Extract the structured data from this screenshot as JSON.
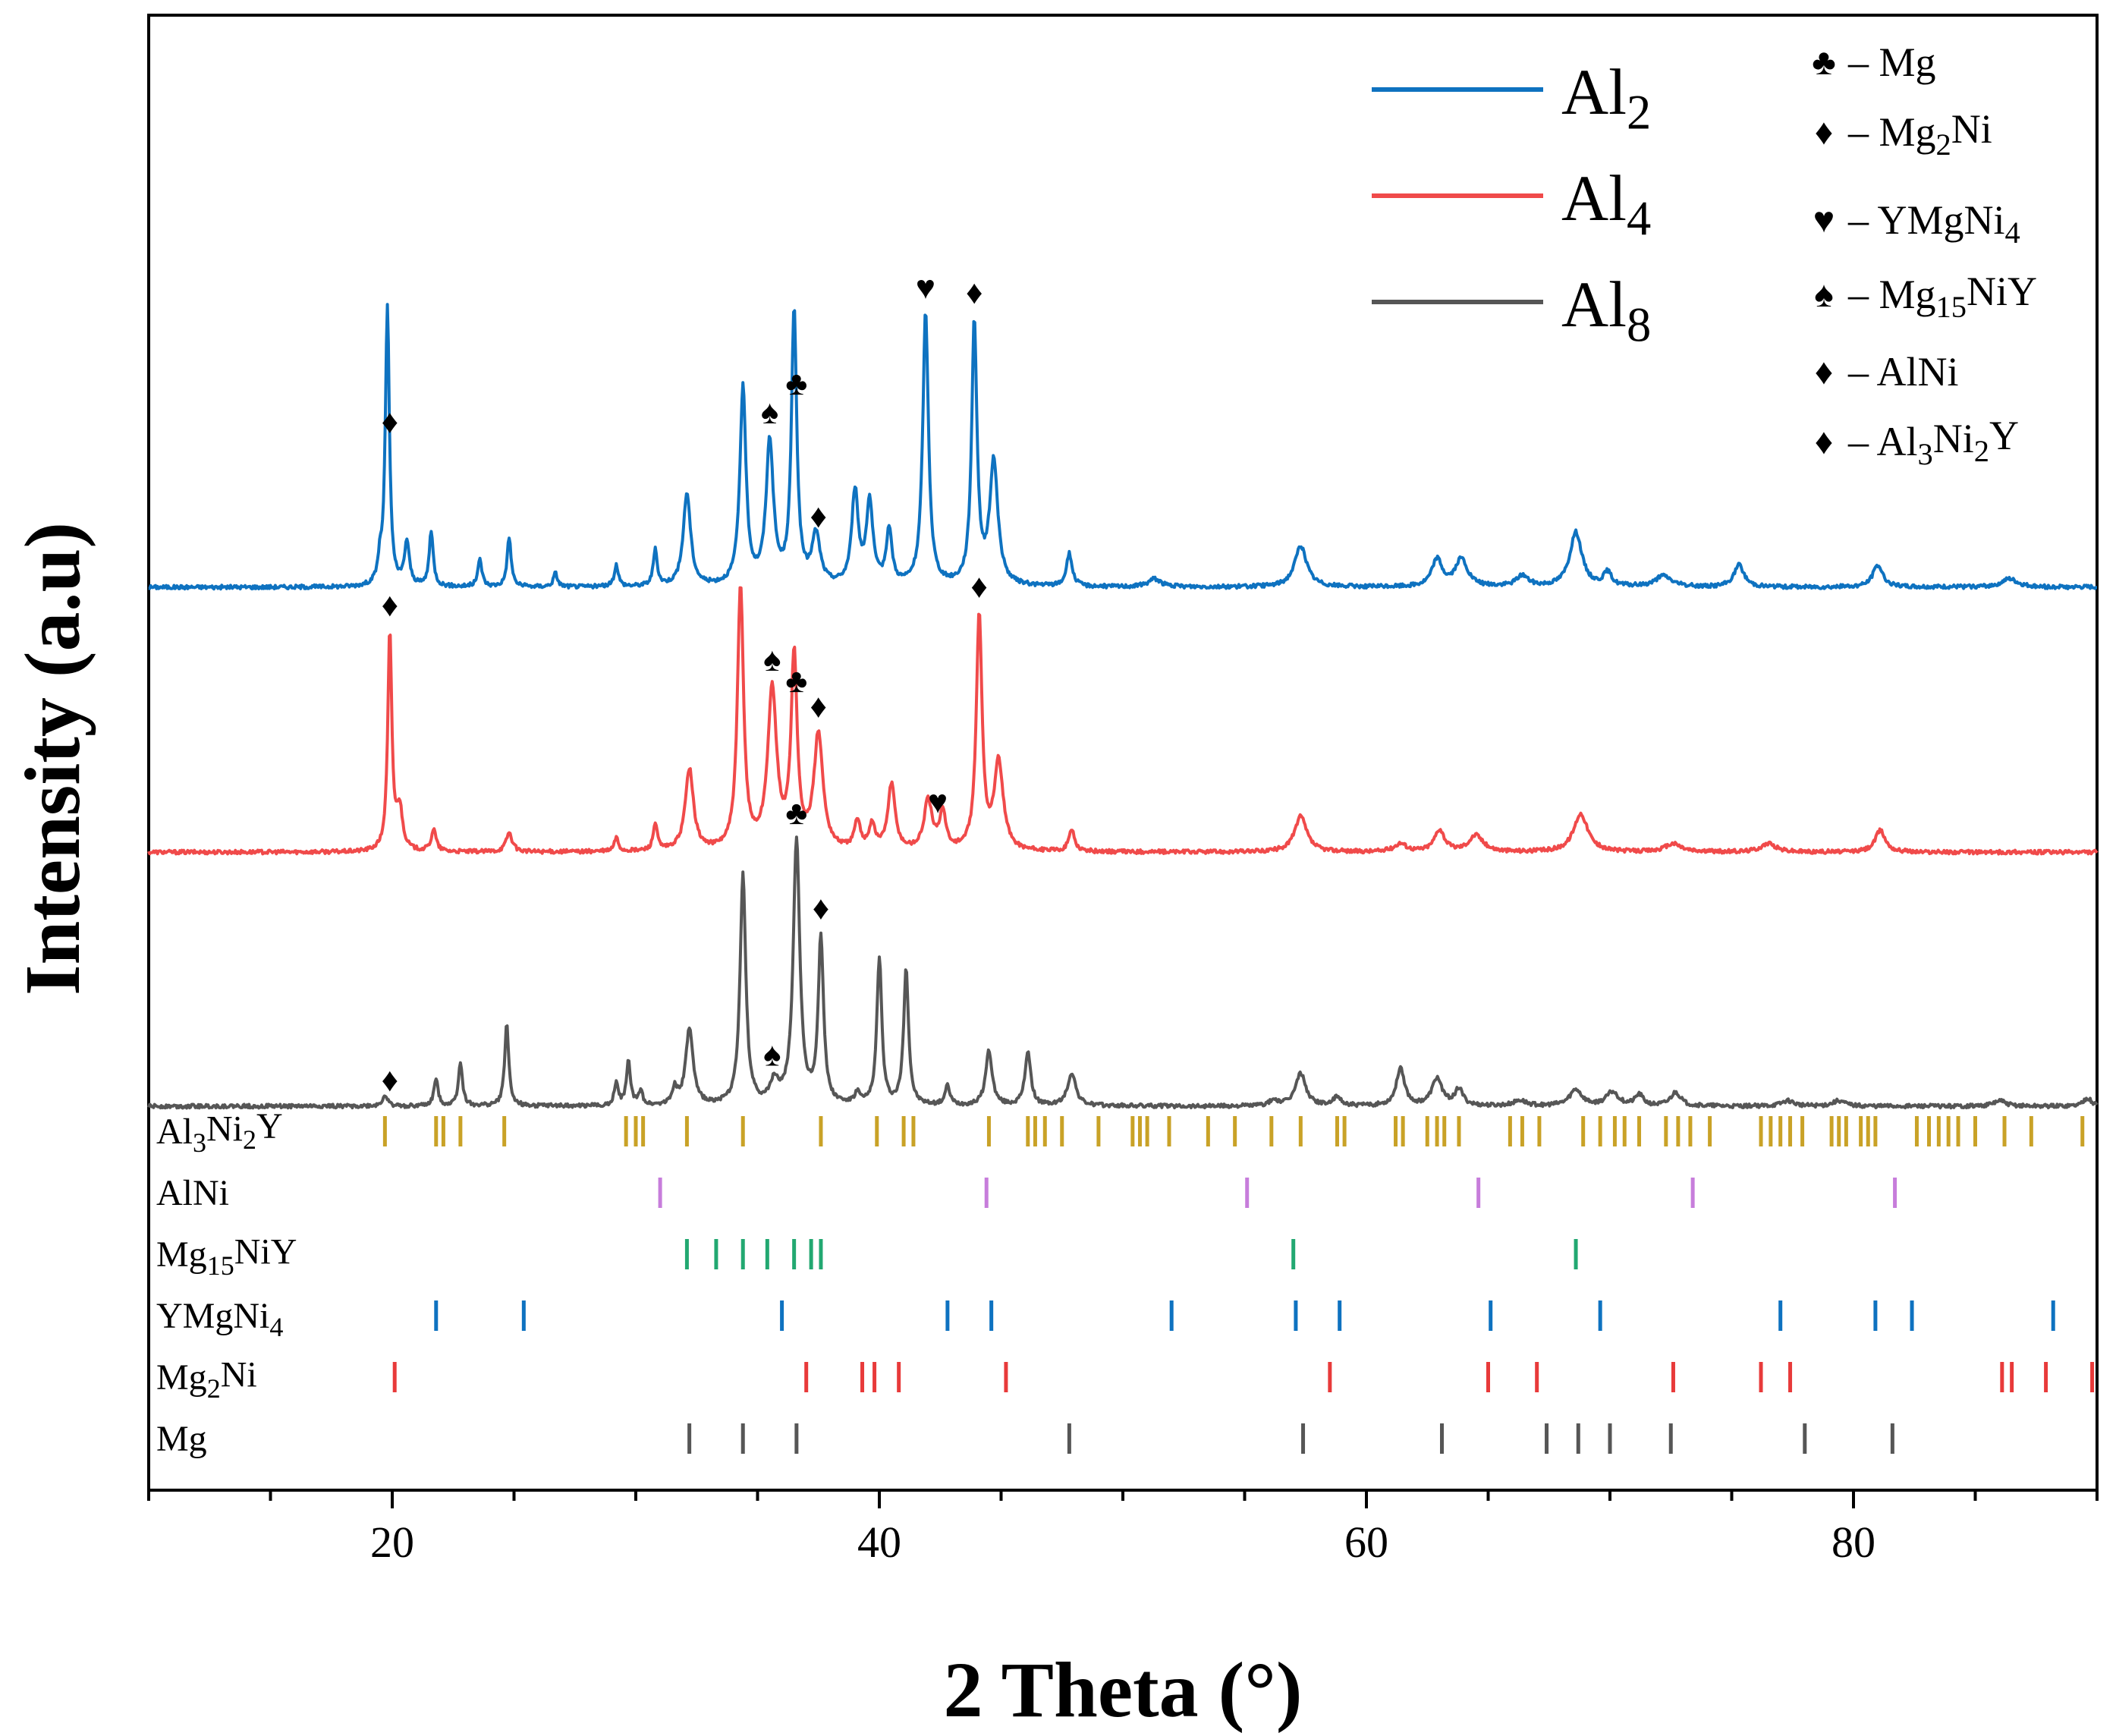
{
  "chart_data": {
    "type": "line",
    "title": "",
    "xlabel": "2 Theta (°)",
    "ylabel": "Intensity (a.u)",
    "xlim": [
      10,
      90
    ],
    "xticks": [
      20,
      40,
      60,
      80
    ],
    "xtick_labels": [
      "20",
      "40",
      "60",
      "80"
    ],
    "series": [
      {
        "name": "Al2",
        "label_base": "Al",
        "label_sub": "2",
        "color": "#0e72c0",
        "baseline": 1.9,
        "peaks": [
          [
            19.5,
            0.08,
            0.1
          ],
          [
            19.8,
            1.02,
            0.1
          ],
          [
            20.6,
            0.16,
            0.12
          ],
          [
            21.6,
            0.2,
            0.1
          ],
          [
            23.6,
            0.1,
            0.1
          ],
          [
            24.8,
            0.18,
            0.1
          ],
          [
            26.7,
            0.05,
            0.1
          ],
          [
            29.2,
            0.08,
            0.1
          ],
          [
            30.8,
            0.13,
            0.1
          ],
          [
            32.1,
            0.34,
            0.18
          ],
          [
            34.4,
            0.72,
            0.15
          ],
          [
            35.5,
            0.52,
            0.18
          ],
          [
            36.5,
            1.0,
            0.13
          ],
          [
            37.4,
            0.18,
            0.2
          ],
          [
            39.0,
            0.34,
            0.16
          ],
          [
            39.6,
            0.3,
            0.16
          ],
          [
            40.4,
            0.2,
            0.14
          ],
          [
            41.9,
            1.0,
            0.14
          ],
          [
            43.9,
            0.96,
            0.13
          ],
          [
            44.7,
            0.45,
            0.2
          ],
          [
            47.8,
            0.12,
            0.14
          ],
          [
            51.3,
            0.03,
            0.3
          ],
          [
            57.3,
            0.15,
            0.3
          ],
          [
            62.9,
            0.1,
            0.25
          ],
          [
            63.9,
            0.1,
            0.3
          ],
          [
            66.4,
            0.04,
            0.3
          ],
          [
            68.6,
            0.2,
            0.3
          ],
          [
            69.9,
            0.05,
            0.2
          ],
          [
            72.2,
            0.04,
            0.4
          ],
          [
            75.3,
            0.08,
            0.25
          ],
          [
            81.0,
            0.08,
            0.25
          ],
          [
            86.4,
            0.03,
            0.4
          ]
        ]
      },
      {
        "name": "Al4",
        "label_base": "Al",
        "label_sub": "4",
        "color": "#f04a4a",
        "baseline": 0.93,
        "peaks": [
          [
            19.9,
            0.8,
            0.1
          ],
          [
            20.3,
            0.15,
            0.15
          ],
          [
            21.7,
            0.08,
            0.12
          ],
          [
            24.8,
            0.07,
            0.15
          ],
          [
            29.2,
            0.05,
            0.1
          ],
          [
            30.8,
            0.1,
            0.1
          ],
          [
            32.2,
            0.3,
            0.2
          ],
          [
            34.3,
            0.96,
            0.15
          ],
          [
            35.6,
            0.58,
            0.22
          ],
          [
            36.5,
            0.7,
            0.15
          ],
          [
            37.5,
            0.42,
            0.22
          ],
          [
            39.1,
            0.1,
            0.15
          ],
          [
            39.7,
            0.09,
            0.15
          ],
          [
            40.5,
            0.24,
            0.18
          ],
          [
            42.0,
            0.18,
            0.2
          ],
          [
            42.6,
            0.14,
            0.15
          ],
          [
            44.1,
            0.86,
            0.14
          ],
          [
            44.9,
            0.32,
            0.22
          ],
          [
            47.9,
            0.08,
            0.14
          ],
          [
            57.3,
            0.13,
            0.3
          ],
          [
            61.4,
            0.03,
            0.3
          ],
          [
            63.0,
            0.08,
            0.25
          ],
          [
            64.5,
            0.06,
            0.35
          ],
          [
            68.8,
            0.14,
            0.35
          ],
          [
            72.6,
            0.03,
            0.4
          ],
          [
            76.5,
            0.03,
            0.4
          ],
          [
            81.1,
            0.08,
            0.25
          ]
        ]
      },
      {
        "name": "Al8",
        "label_base": "Al",
        "label_sub": "8",
        "color": "#565656",
        "baseline": 0.0,
        "peaks": [
          [
            19.7,
            0.04,
            0.12
          ],
          [
            21.8,
            0.1,
            0.1
          ],
          [
            22.8,
            0.16,
            0.1
          ],
          [
            24.7,
            0.3,
            0.1
          ],
          [
            29.2,
            0.08,
            0.1
          ],
          [
            29.7,
            0.16,
            0.1
          ],
          [
            30.2,
            0.05,
            0.1
          ],
          [
            31.6,
            0.06,
            0.12
          ],
          [
            32.2,
            0.28,
            0.18
          ],
          [
            34.4,
            0.84,
            0.14
          ],
          [
            35.7,
            0.08,
            0.2
          ],
          [
            36.6,
            0.97,
            0.16
          ],
          [
            37.6,
            0.61,
            0.13
          ],
          [
            39.1,
            0.04,
            0.12
          ],
          [
            40.0,
            0.54,
            0.12
          ],
          [
            41.1,
            0.5,
            0.12
          ],
          [
            42.8,
            0.07,
            0.12
          ],
          [
            44.5,
            0.2,
            0.16
          ],
          [
            46.1,
            0.2,
            0.14
          ],
          [
            47.9,
            0.12,
            0.2
          ],
          [
            56.2,
            0.02,
            0.2
          ],
          [
            57.3,
            0.12,
            0.25
          ],
          [
            58.8,
            0.03,
            0.2
          ],
          [
            61.4,
            0.14,
            0.2
          ],
          [
            62.9,
            0.1,
            0.25
          ],
          [
            63.8,
            0.06,
            0.2
          ],
          [
            66.3,
            0.02,
            0.3
          ],
          [
            68.6,
            0.06,
            0.3
          ],
          [
            70.1,
            0.05,
            0.3
          ],
          [
            71.2,
            0.04,
            0.2
          ],
          [
            72.7,
            0.05,
            0.25
          ],
          [
            77.3,
            0.02,
            0.3
          ],
          [
            79.4,
            0.02,
            0.3
          ],
          [
            86.0,
            0.02,
            0.3
          ],
          [
            89.6,
            0.03,
            0.2
          ]
        ]
      }
    ],
    "phase_markers": [
      {
        "series": "Al2",
        "symbol": "♦",
        "color": "#000000",
        "x": 19.9
      },
      {
        "series": "Al2",
        "symbol": "♣",
        "color": "#000000",
        "x": 36.6
      },
      {
        "series": "Al2",
        "symbol": "♠",
        "color": "#000000",
        "x": 35.5
      },
      {
        "series": "Al2",
        "symbol": "♥",
        "color": "#000000",
        "x": 41.9
      },
      {
        "series": "Al2",
        "symbol": "♦",
        "color": "#ff0000",
        "x": 43.9
      },
      {
        "series": "Al2",
        "symbol": "♦",
        "color": "#0000cc",
        "x": 37.5
      },
      {
        "series": "Al4",
        "symbol": "♦",
        "color": "#000000",
        "x": 19.9
      },
      {
        "series": "Al4",
        "symbol": "♣",
        "color": "#000000",
        "x": 36.6
      },
      {
        "series": "Al4",
        "symbol": "♠",
        "color": "#000000",
        "x": 35.6
      },
      {
        "series": "Al4",
        "symbol": "♦",
        "color": "#0000cc",
        "x": 37.5
      },
      {
        "series": "Al4",
        "symbol": "♥",
        "color": "#000000",
        "x": 42.4
      },
      {
        "series": "Al4",
        "symbol": "♦",
        "color": "#ff0000",
        "x": 44.1
      },
      {
        "series": "Al8",
        "symbol": "♦",
        "color": "#000000",
        "x": 19.9
      },
      {
        "series": "Al8",
        "symbol": "♣",
        "color": "#000000",
        "x": 36.6
      },
      {
        "series": "Al8",
        "symbol": "♠",
        "color": "#000000",
        "x": 35.6
      },
      {
        "series": "Al8",
        "symbol": "♦",
        "color": "#0000cc",
        "x": 37.6
      }
    ],
    "symbol_legend": [
      {
        "symbol": "♣",
        "color": "#000000",
        "label_base": "– Mg",
        "parts": [
          [
            "– Mg",
            ""
          ]
        ]
      },
      {
        "symbol": "♦",
        "color": "#000000",
        "label_base": "– Mg2Ni",
        "parts": [
          [
            "– Mg",
            ""
          ],
          [
            "2",
            "sub"
          ],
          [
            "Ni",
            ""
          ]
        ]
      },
      {
        "symbol": "♥",
        "color": "#000000",
        "label_base": "– YMgNi4",
        "parts": [
          [
            "– YMgNi",
            ""
          ],
          [
            "4",
            "sub"
          ]
        ]
      },
      {
        "symbol": "♠",
        "color": "#000000",
        "label_base": "– Mg15NiY",
        "parts": [
          [
            "– Mg",
            ""
          ],
          [
            "15",
            "sub"
          ],
          [
            "NiY",
            ""
          ]
        ]
      },
      {
        "symbol": "♦",
        "color": "#ff0000",
        "label_base": "– AlNi",
        "parts": [
          [
            "– AlNi",
            ""
          ]
        ]
      },
      {
        "symbol": "♦",
        "color": "#0000cc",
        "label_base": "– Al3Ni2Y",
        "parts": [
          [
            "– Al",
            ""
          ],
          [
            "3",
            "sub"
          ],
          [
            "Ni",
            ""
          ],
          [
            "2",
            "sub"
          ],
          [
            "Y",
            ""
          ]
        ]
      }
    ],
    "reference_patterns": [
      {
        "name": "Al3Ni2Y",
        "parts": [
          [
            "Al",
            ""
          ],
          [
            "3",
            "sub"
          ],
          [
            "Ni",
            ""
          ],
          [
            "2",
            "sub"
          ],
          [
            "Y",
            ""
          ]
        ],
        "color": "#c9a227",
        "positions": [
          19.7,
          21.8,
          22.1,
          22.8,
          24.6,
          29.6,
          30.0,
          30.3,
          32.1,
          34.4,
          37.6,
          39.9,
          41.0,
          41.4,
          44.5,
          46.1,
          46.4,
          46.8,
          47.5,
          49.0,
          50.4,
          50.7,
          51.0,
          51.9,
          53.5,
          54.6,
          56.1,
          57.3,
          58.8,
          59.1,
          61.2,
          61.5,
          62.5,
          62.9,
          63.2,
          63.8,
          65.9,
          66.4,
          67.1,
          68.9,
          69.6,
          70.2,
          70.6,
          71.2,
          72.3,
          72.8,
          73.3,
          74.1,
          76.2,
          76.6,
          77.0,
          77.4,
          77.9,
          79.1,
          79.4,
          79.7,
          80.3,
          80.6,
          80.9,
          82.6,
          83.1,
          83.5,
          83.9,
          84.3,
          85.0,
          86.2,
          87.3,
          89.4
        ]
      },
      {
        "name": "AlNi",
        "parts": [
          [
            "AlNi",
            ""
          ]
        ],
        "color": "#c77ddb",
        "positions": [
          31.0,
          44.4,
          55.1,
          64.6,
          73.4,
          81.7
        ]
      },
      {
        "name": "Mg15NiY",
        "parts": [
          [
            "Mg",
            ""
          ],
          [
            "15",
            "sub"
          ],
          [
            "NiY",
            ""
          ]
        ],
        "color": "#22a871",
        "positions": [
          32.1,
          33.3,
          34.4,
          35.4,
          36.5,
          37.2,
          37.6,
          57.0,
          68.6
        ]
      },
      {
        "name": "YMgNi4",
        "parts": [
          [
            "YMgNi",
            ""
          ],
          [
            "4",
            "sub"
          ]
        ],
        "color": "#0e72c0",
        "positions": [
          21.8,
          25.4,
          36.0,
          42.8,
          44.6,
          52.0,
          57.1,
          58.9,
          65.1,
          69.6,
          77.0,
          80.9,
          82.4,
          88.2
        ]
      },
      {
        "name": "Mg2Ni",
        "parts": [
          [
            "Mg",
            ""
          ],
          [
            "2",
            "sub"
          ],
          [
            "Ni",
            ""
          ]
        ],
        "color": "#e83a3a",
        "positions": [
          20.1,
          37.0,
          39.3,
          39.8,
          40.8,
          45.2,
          58.5,
          65.0,
          67.0,
          72.6,
          76.2,
          77.4,
          86.1,
          86.5,
          87.9,
          89.8
        ]
      },
      {
        "name": "Mg",
        "parts": [
          [
            "Mg",
            ""
          ]
        ],
        "color": "#565656",
        "positions": [
          32.2,
          34.4,
          36.6,
          47.8,
          57.4,
          63.1,
          67.4,
          68.7,
          70.0,
          72.5,
          78.0,
          81.6
        ]
      }
    ]
  }
}
